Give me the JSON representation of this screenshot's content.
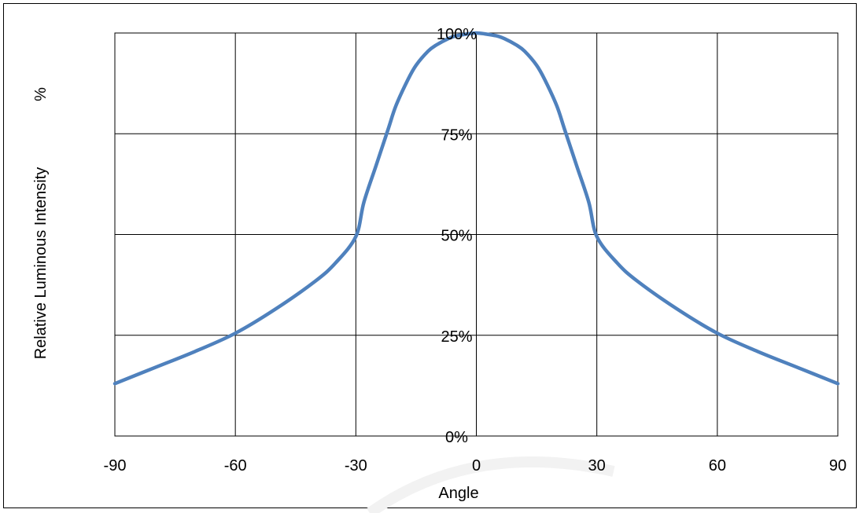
{
  "chart_data": {
    "type": "line",
    "title": "",
    "xlabel": "Angle",
    "ylabel": "Relative Luminous Intensity",
    "ylabel_unit": "%",
    "xlim": [
      -90,
      90
    ],
    "ylim": [
      0,
      100
    ],
    "x_ticks": [
      "-90",
      "-60",
      "-30",
      "0",
      "30",
      "60",
      "90"
    ],
    "y_ticks": [
      "0%",
      "25%",
      "50%",
      "75%",
      "100%"
    ],
    "grid": true,
    "legend": "none",
    "line_color": "#4f81bd",
    "series": [
      {
        "x": [
          -90,
          -80,
          -70,
          -60,
          -50,
          -40,
          -35,
          -30,
          -28,
          -25,
          -22,
          -20,
          -17,
          -15,
          -12,
          -10,
          -7,
          -5,
          -2,
          0,
          2,
          5,
          7,
          10,
          12,
          15,
          17,
          20,
          22,
          25,
          28,
          30,
          35,
          40,
          50,
          60,
          70,
          80,
          90
        ],
        "y": [
          13,
          17,
          21,
          25.5,
          31.5,
          38.5,
          43,
          49.5,
          58,
          67,
          76,
          82,
          88.5,
          92,
          95.5,
          97,
          98.6,
          99.3,
          99.8,
          100,
          99.8,
          99.3,
          98.6,
          97,
          95.5,
          92,
          88.5,
          82,
          76,
          67,
          58,
          49.5,
          43,
          38.5,
          31.5,
          25.5,
          21,
          17,
          13
        ]
      }
    ]
  }
}
